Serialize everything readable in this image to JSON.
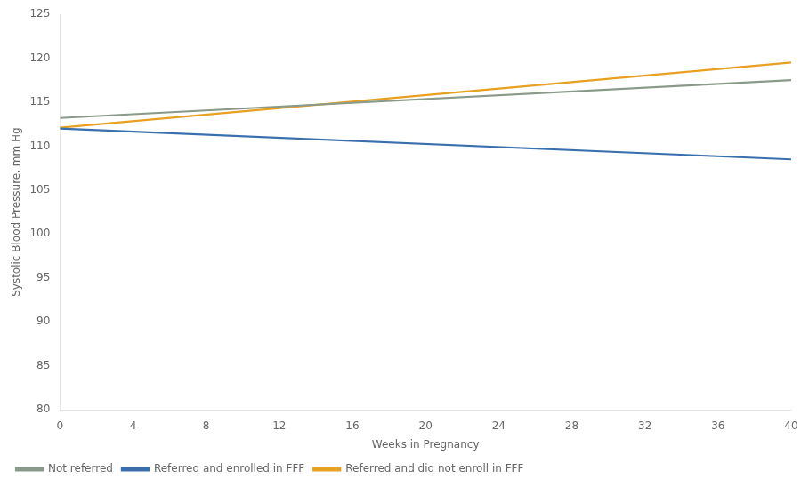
{
  "chart_data": {
    "type": "line",
    "x": [
      0,
      40
    ],
    "series": [
      {
        "name": "Not referred",
        "color": "#8a9a8a",
        "values": [
          113.2,
          117.5
        ]
      },
      {
        "name": "Referred and enrolled in FFF",
        "color": "#3a6fad",
        "values": [
          112.0,
          108.5
        ]
      },
      {
        "name": "Referred and did not enroll in FFF",
        "color": "#e8a020",
        "values": [
          112.1,
          119.5
        ]
      }
    ],
    "xlabel": "Weeks in Pregnancy",
    "ylabel": "Systolic Blood Pressure, mm Hg",
    "xlim": [
      0,
      40
    ],
    "ylim": [
      80,
      125
    ],
    "xticks": [
      0,
      4,
      8,
      12,
      16,
      20,
      24,
      28,
      32,
      36,
      40
    ],
    "yticks": [
      80,
      85,
      90,
      95,
      100,
      105,
      110,
      115,
      120,
      125
    ],
    "grid": false,
    "legend": "lower left"
  }
}
